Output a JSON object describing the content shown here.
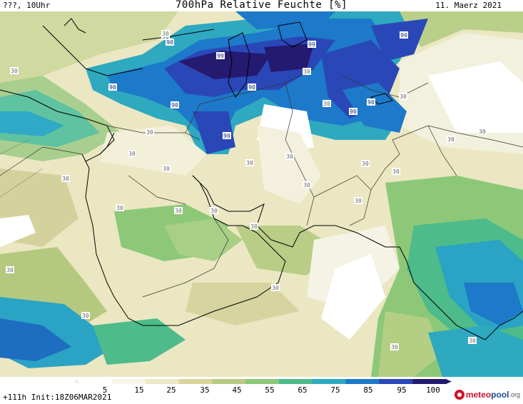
{
  "header": {
    "left": "???, 10Uhr",
    "title": "700hPa Relative Feuchte [%]",
    "date": "11. Maerz 2021"
  },
  "legend": {
    "ticks": [
      "5",
      "15",
      "25",
      "35",
      "45",
      "55",
      "65",
      "75",
      "85",
      "95",
      "100"
    ],
    "colors": [
      "#ffffff",
      "#f6f5e8",
      "#ece9c5",
      "#d9d49b",
      "#b8c982",
      "#8cc878",
      "#4dbb8a",
      "#2ea9c0",
      "#1d79c9",
      "#2a47b8",
      "#241a6f"
    ]
  },
  "footer": {
    "init": "+111h Init:18Z06MAR2021",
    "brand_meteo": "meteo",
    "brand_pool": "pool",
    "brand_org": ".org"
  },
  "map_labels": [
    {
      "text": "90"
    },
    {
      "text": "90"
    },
    {
      "text": "99"
    },
    {
      "text": "99"
    },
    {
      "text": "90"
    },
    {
      "text": "90"
    },
    {
      "text": "90"
    },
    {
      "text": "90"
    },
    {
      "text": "90"
    },
    {
      "text": "90"
    },
    {
      "text": "90"
    },
    {
      "text": "30"
    },
    {
      "text": "30"
    },
    {
      "text": "30"
    },
    {
      "text": "30"
    },
    {
      "text": "30"
    },
    {
      "text": "30"
    },
    {
      "text": "30"
    },
    {
      "text": "30"
    },
    {
      "text": "30"
    },
    {
      "text": "30"
    },
    {
      "text": "30"
    },
    {
      "text": "30"
    },
    {
      "text": "30"
    },
    {
      "text": "30"
    },
    {
      "text": "30"
    },
    {
      "text": "30"
    },
    {
      "text": "30"
    },
    {
      "text": "30"
    },
    {
      "text": "30"
    },
    {
      "text": "30"
    },
    {
      "text": "30"
    },
    {
      "text": "30"
    },
    {
      "text": "30"
    },
    {
      "text": "30"
    },
    {
      "text": "30"
    },
    {
      "text": "30"
    }
  ]
}
